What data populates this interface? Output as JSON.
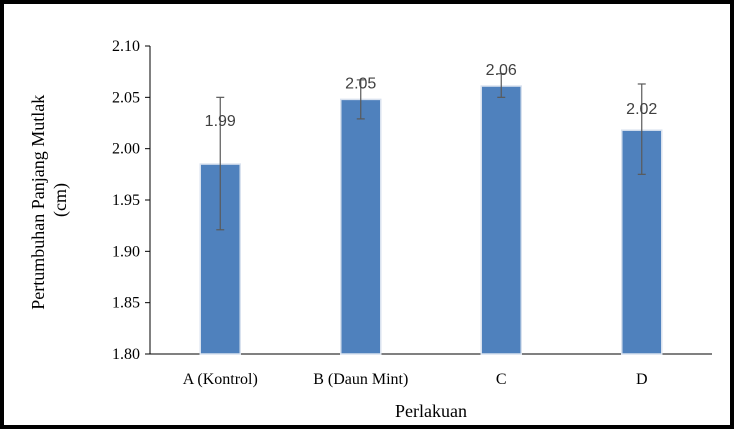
{
  "chart_data": {
    "type": "bar",
    "title": "",
    "xlabel": "Perlakuan",
    "ylabel_lines": [
      "Pertumbuhan Panjang Mutlak",
      "(cm)"
    ],
    "categories": [
      "A (Kontrol)",
      "B (Daun Mint)",
      "C",
      "D"
    ],
    "values": [
      1.985,
      2.048,
      2.061,
      2.018
    ],
    "data_labels": [
      "1.99",
      "2.05",
      "2.06",
      "2.02"
    ],
    "error_bars": [
      {
        "low": 1.921,
        "high": 2.05
      },
      {
        "low": 2.029,
        "high": 2.067
      },
      {
        "low": 2.05,
        "high": 2.073
      },
      {
        "low": 1.975,
        "high": 2.063
      }
    ],
    "ylim": [
      1.8,
      2.1
    ],
    "yticks": [
      "1.80",
      "1.85",
      "1.90",
      "1.95",
      "2.00",
      "2.05",
      "2.10"
    ],
    "grid": false,
    "legend": "none",
    "colors": {
      "bar": "#4f81bd",
      "bar_edge": "#d9e2ef",
      "error_bar": "#595959",
      "axis": "#000000"
    }
  }
}
